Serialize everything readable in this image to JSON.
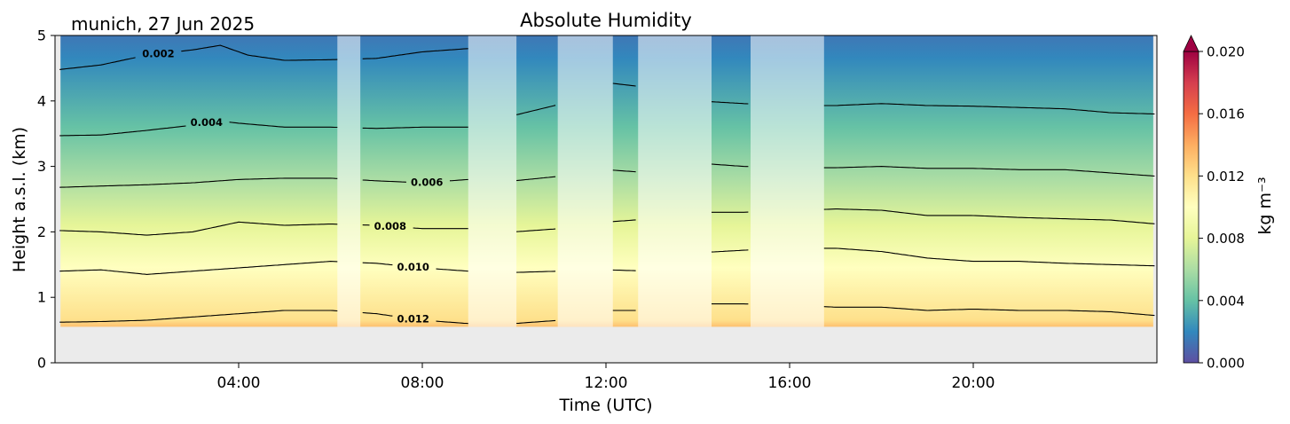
{
  "chart_data": {
    "type": "heatmap",
    "title": "Absolute Humidity",
    "location_date": "munich, 27 Jun 2025",
    "xlabel": "Time (UTC)",
    "ylabel": "Height a.s.l. (km)",
    "xlim_hours": [
      0,
      24
    ],
    "ylim_km": [
      0,
      5
    ],
    "x_ticks": [
      {
        "hour": 4,
        "label": "04:00"
      },
      {
        "hour": 8,
        "label": "08:00"
      },
      {
        "hour": 12,
        "label": "12:00"
      },
      {
        "hour": 16,
        "label": "16:00"
      },
      {
        "hour": 20,
        "label": "20:00"
      }
    ],
    "y_ticks": [
      {
        "value": 0,
        "label": "0"
      },
      {
        "value": 1,
        "label": "1"
      },
      {
        "value": 2,
        "label": "2"
      },
      {
        "value": 3,
        "label": "3"
      },
      {
        "value": 4,
        "label": "4"
      },
      {
        "value": 5,
        "label": "5"
      }
    ],
    "data_start_hour": 0.12,
    "data_end_hour": 23.92,
    "surface_height_km": 0.55,
    "colorbar": {
      "label": "kg m⁻³",
      "vmin": 0.0,
      "vmax": 0.02,
      "extend": "max",
      "ticks": [
        {
          "value": 0.0,
          "label": "0.000"
        },
        {
          "value": 0.004,
          "label": "0.004"
        },
        {
          "value": 0.008,
          "label": "0.008"
        },
        {
          "value": 0.012,
          "label": "0.012"
        },
        {
          "value": 0.016,
          "label": "0.016"
        },
        {
          "value": 0.02,
          "label": "0.020"
        }
      ],
      "colormap": [
        "#5e4fa2",
        "#3288bd",
        "#66c2a5",
        "#abdda4",
        "#e6f598",
        "#ffffbf",
        "#fee08b",
        "#fdae61",
        "#f46d43",
        "#d53e4f",
        "#9e0142"
      ]
    },
    "contours": [
      {
        "label": "0.002",
        "profile": [
          [
            0.1,
            4.48
          ],
          [
            1.0,
            4.55
          ],
          [
            2.0,
            4.7
          ],
          [
            3.0,
            4.78
          ],
          [
            3.6,
            4.85
          ],
          [
            4.2,
            4.7
          ],
          [
            5.0,
            4.62
          ],
          [
            6.0,
            4.63
          ],
          [
            7.0,
            4.65
          ],
          [
            8.0,
            4.75
          ],
          [
            9.0,
            4.8
          ]
        ],
        "label_at_hour": 2.25
      },
      {
        "label": "0.004",
        "profile": [
          [
            0.1,
            3.47
          ],
          [
            1.0,
            3.48
          ],
          [
            2.0,
            3.55
          ],
          [
            3.0,
            3.63
          ],
          [
            3.5,
            3.7
          ],
          [
            4.0,
            3.66
          ],
          [
            5.0,
            3.6
          ],
          [
            6.0,
            3.6
          ],
          [
            7.0,
            3.58
          ],
          [
            8.0,
            3.6
          ],
          [
            9.0,
            3.6
          ],
          [
            10.0,
            3.78
          ],
          [
            11.0,
            3.95
          ],
          [
            12.0,
            4.28
          ],
          [
            13.0,
            4.2
          ],
          [
            14.0,
            4.0
          ],
          [
            15.0,
            3.96
          ],
          [
            16.0,
            3.93
          ],
          [
            17.0,
            3.93
          ],
          [
            18.0,
            3.96
          ],
          [
            19.0,
            3.93
          ],
          [
            20.0,
            3.92
          ],
          [
            21.0,
            3.9
          ],
          [
            22.0,
            3.88
          ],
          [
            23.0,
            3.82
          ],
          [
            24.0,
            3.8
          ]
        ],
        "label_at_hour": 3.3
      },
      {
        "label": "0.006",
        "profile": [
          [
            0.1,
            2.68
          ],
          [
            1.0,
            2.7
          ],
          [
            2.0,
            2.72
          ],
          [
            3.0,
            2.75
          ],
          [
            4.0,
            2.8
          ],
          [
            5.0,
            2.82
          ],
          [
            6.0,
            2.82
          ],
          [
            7.0,
            2.78
          ],
          [
            8.0,
            2.75
          ],
          [
            9.0,
            2.8
          ],
          [
            10.0,
            2.78
          ],
          [
            11.0,
            2.85
          ],
          [
            12.0,
            2.95
          ],
          [
            13.0,
            2.9
          ],
          [
            14.0,
            3.05
          ],
          [
            15.0,
            3.0
          ],
          [
            16.0,
            2.98
          ],
          [
            17.0,
            2.98
          ],
          [
            18.0,
            3.0
          ],
          [
            19.0,
            2.97
          ],
          [
            20.0,
            2.97
          ],
          [
            21.0,
            2.95
          ],
          [
            22.0,
            2.95
          ],
          [
            23.0,
            2.9
          ],
          [
            24.0,
            2.85
          ]
        ],
        "label_at_hour": 8.1
      },
      {
        "label": "0.008",
        "profile": [
          [
            0.1,
            2.02
          ],
          [
            1.0,
            2.0
          ],
          [
            2.0,
            1.95
          ],
          [
            3.0,
            2.0
          ],
          [
            4.0,
            2.15
          ],
          [
            5.0,
            2.1
          ],
          [
            6.0,
            2.12
          ],
          [
            7.0,
            2.1
          ],
          [
            8.0,
            2.05
          ],
          [
            9.0,
            2.05
          ],
          [
            10.0,
            2.0
          ],
          [
            11.0,
            2.05
          ],
          [
            12.0,
            2.15
          ],
          [
            13.0,
            2.2
          ],
          [
            14.0,
            2.3
          ],
          [
            15.0,
            2.3
          ],
          [
            16.0,
            2.32
          ],
          [
            17.0,
            2.35
          ],
          [
            18.0,
            2.33
          ],
          [
            19.0,
            2.25
          ],
          [
            20.0,
            2.25
          ],
          [
            21.0,
            2.22
          ],
          [
            22.0,
            2.2
          ],
          [
            23.0,
            2.18
          ],
          [
            24.0,
            2.12
          ]
        ],
        "label_at_hour": 7.3
      },
      {
        "label": "0.010",
        "profile": [
          [
            0.1,
            1.4
          ],
          [
            1.0,
            1.42
          ],
          [
            2.0,
            1.35
          ],
          [
            3.0,
            1.4
          ],
          [
            4.0,
            1.45
          ],
          [
            5.0,
            1.5
          ],
          [
            6.0,
            1.55
          ],
          [
            7.0,
            1.52
          ],
          [
            8.0,
            1.45
          ],
          [
            9.0,
            1.4
          ],
          [
            10.0,
            1.38
          ],
          [
            11.0,
            1.4
          ],
          [
            12.0,
            1.42
          ],
          [
            13.0,
            1.4
          ],
          [
            14.0,
            1.68
          ],
          [
            15.0,
            1.72
          ],
          [
            16.0,
            1.75
          ],
          [
            17.0,
            1.75
          ],
          [
            18.0,
            1.7
          ],
          [
            19.0,
            1.6
          ],
          [
            20.0,
            1.55
          ],
          [
            21.0,
            1.55
          ],
          [
            22.0,
            1.52
          ],
          [
            23.0,
            1.5
          ],
          [
            24.0,
            1.48
          ]
        ],
        "label_at_hour": 7.8
      },
      {
        "label": "0.012",
        "profile": [
          [
            0.1,
            0.62
          ],
          [
            1.0,
            0.63
          ],
          [
            2.0,
            0.65
          ],
          [
            3.0,
            0.7
          ],
          [
            4.0,
            0.75
          ],
          [
            5.0,
            0.8
          ],
          [
            6.0,
            0.8
          ],
          [
            7.0,
            0.75
          ],
          [
            8.0,
            0.65
          ],
          [
            9.0,
            0.6
          ],
          [
            10.0,
            0.6
          ],
          [
            11.0,
            0.65
          ],
          [
            12.0,
            0.8
          ],
          [
            13.0,
            0.8
          ],
          [
            14.0,
            0.9
          ],
          [
            15.0,
            0.9
          ],
          [
            16.0,
            0.88
          ],
          [
            17.0,
            0.85
          ],
          [
            18.0,
            0.85
          ],
          [
            19.0,
            0.8
          ],
          [
            20.0,
            0.82
          ],
          [
            21.0,
            0.8
          ],
          [
            22.0,
            0.8
          ],
          [
            23.0,
            0.78
          ],
          [
            24.0,
            0.72
          ]
        ],
        "label_at_hour": 7.8
      }
    ],
    "masked_periods_hours": [
      [
        6.15,
        6.65
      ],
      [
        9.0,
        10.05
      ],
      [
        10.95,
        12.15
      ],
      [
        12.7,
        14.3
      ],
      [
        15.15,
        16.75
      ]
    ]
  }
}
